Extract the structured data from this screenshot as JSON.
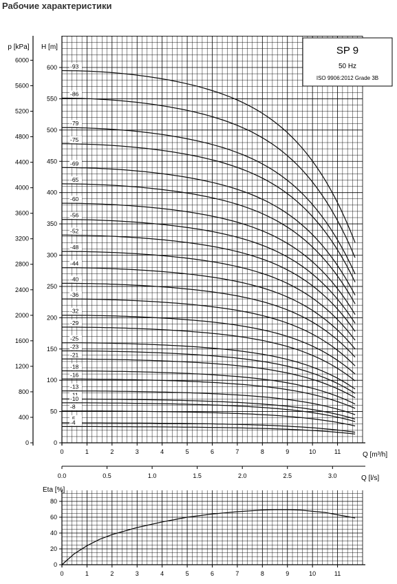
{
  "page_title": "Рабочие характеристики",
  "legend_box": {
    "title": "SP 9",
    "frequency": "50 Hz",
    "standard": "ISO 9906:2012 Grade 3B"
  },
  "chart_data": [
    {
      "type": "line",
      "title": "SP 9",
      "xlabel": "Q [m³/h]",
      "x2label": "Q [l/s]",
      "ylabel_left": "p [kPa]",
      "ylabel": "H [m]",
      "xlim": [
        0,
        12
      ],
      "ylim": [
        0,
        620
      ],
      "x_ticks": [
        0,
        1,
        2,
        3,
        4,
        5,
        6,
        7,
        8,
        9,
        10,
        11
      ],
      "x2_ticks": [
        "0.0",
        "0.5",
        "1.0",
        "1.5",
        "2.0",
        "2.5",
        "3.0"
      ],
      "y_ticks": [
        0,
        50,
        100,
        150,
        200,
        250,
        300,
        350,
        400,
        450,
        500,
        550,
        600
      ],
      "p_ticks": [
        0,
        400,
        800,
        1200,
        1600,
        2000,
        2400,
        2800,
        3200,
        3600,
        4000,
        4400,
        4800,
        5200,
        5600,
        6000
      ],
      "grid": true,
      "q_end": 11.7,
      "series": [
        {
          "name": "93",
          "values": [
            {
              "x": 0,
              "y": 595
            },
            {
              "x": 11.7,
              "y": 320
            }
          ]
        },
        {
          "name": "86",
          "values": [
            {
              "x": 0,
              "y": 551
            },
            {
              "x": 11.7,
              "y": 296
            }
          ]
        },
        {
          "name": "79",
          "values": [
            {
              "x": 0,
              "y": 504
            },
            {
              "x": 11.7,
              "y": 270
            }
          ]
        },
        {
          "name": "75",
          "values": [
            {
              "x": 0,
              "y": 478
            },
            {
              "x": 11.7,
              "y": 257
            }
          ]
        },
        {
          "name": "69",
          "values": [
            {
              "x": 0,
              "y": 440
            },
            {
              "x": 11.7,
              "y": 236
            }
          ]
        },
        {
          "name": "65",
          "values": [
            {
              "x": 0,
              "y": 414
            },
            {
              "x": 11.7,
              "y": 222
            }
          ]
        },
        {
          "name": "60",
          "values": [
            {
              "x": 0,
              "y": 383
            },
            {
              "x": 11.7,
              "y": 205
            }
          ]
        },
        {
          "name": "56",
          "values": [
            {
              "x": 0,
              "y": 357
            },
            {
              "x": 11.7,
              "y": 191
            }
          ]
        },
        {
          "name": "52",
          "values": [
            {
              "x": 0,
              "y": 332
            },
            {
              "x": 11.7,
              "y": 178
            }
          ]
        },
        {
          "name": "48",
          "values": [
            {
              "x": 0,
              "y": 306
            },
            {
              "x": 11.7,
              "y": 164
            }
          ]
        },
        {
          "name": "44",
          "values": [
            {
              "x": 0,
              "y": 280
            },
            {
              "x": 11.7,
              "y": 150
            }
          ]
        },
        {
          "name": "40",
          "values": [
            {
              "x": 0,
              "y": 255
            },
            {
              "x": 11.7,
              "y": 137
            }
          ]
        },
        {
          "name": "36",
          "values": [
            {
              "x": 0,
              "y": 230
            },
            {
              "x": 11.7,
              "y": 123
            }
          ]
        },
        {
          "name": "32",
          "values": [
            {
              "x": 0,
              "y": 204
            },
            {
              "x": 11.7,
              "y": 110
            }
          ]
        },
        {
          "name": "29",
          "values": [
            {
              "x": 0,
              "y": 185
            },
            {
              "x": 11.7,
              "y": 99
            }
          ]
        },
        {
          "name": "25",
          "values": [
            {
              "x": 0,
              "y": 160
            },
            {
              "x": 11.7,
              "y": 86
            }
          ]
        },
        {
          "name": "23",
          "values": [
            {
              "x": 0,
              "y": 147
            },
            {
              "x": 11.7,
              "y": 79
            }
          ]
        },
        {
          "name": "21",
          "values": [
            {
              "x": 0,
              "y": 134
            },
            {
              "x": 11.7,
              "y": 72
            }
          ]
        },
        {
          "name": "18",
          "values": [
            {
              "x": 0,
              "y": 115
            },
            {
              "x": 11.7,
              "y": 62
            }
          ]
        },
        {
          "name": "16",
          "values": [
            {
              "x": 0,
              "y": 102
            },
            {
              "x": 11.7,
              "y": 55
            }
          ]
        },
        {
          "name": "13",
          "values": [
            {
              "x": 0,
              "y": 83
            },
            {
              "x": 11.7,
              "y": 45
            }
          ]
        },
        {
          "name": "11",
          "values": [
            {
              "x": 0,
              "y": 70
            },
            {
              "x": 11.7,
              "y": 38
            }
          ]
        },
        {
          "name": "10",
          "values": [
            {
              "x": 0,
              "y": 64
            },
            {
              "x": 11.7,
              "y": 34
            }
          ]
        },
        {
          "name": "8",
          "values": [
            {
              "x": 0,
              "y": 51
            },
            {
              "x": 11.7,
              "y": 27
            }
          ]
        },
        {
          "name": "5",
          "values": [
            {
              "x": 0,
              "y": 32
            },
            {
              "x": 11.7,
              "y": 17
            }
          ]
        },
        {
          "name": "4",
          "values": [
            {
              "x": 0,
              "y": 26
            },
            {
              "x": 11.7,
              "y": 14
            }
          ]
        }
      ]
    },
    {
      "type": "line",
      "ylabel": "Eta [%]",
      "xlim": [
        0,
        12
      ],
      "ylim": [
        0,
        90
      ],
      "x_ticks": [
        0,
        1,
        2,
        3,
        4,
        5,
        6,
        7,
        8,
        9,
        10,
        11
      ],
      "y_ticks": [
        0,
        20,
        40,
        60,
        80
      ],
      "grid": true,
      "series": [
        {
          "x": [
            0,
            0.5,
            1,
            1.5,
            2,
            3,
            4,
            5,
            6,
            7,
            8,
            8.5,
            9,
            9.5,
            10,
            10.5,
            11,
            11.7
          ],
          "values": [
            0,
            14,
            24,
            32,
            38,
            47,
            54,
            60,
            64,
            67,
            69,
            69.5,
            69.5,
            69,
            67.5,
            66,
            63,
            59
          ]
        }
      ]
    }
  ]
}
